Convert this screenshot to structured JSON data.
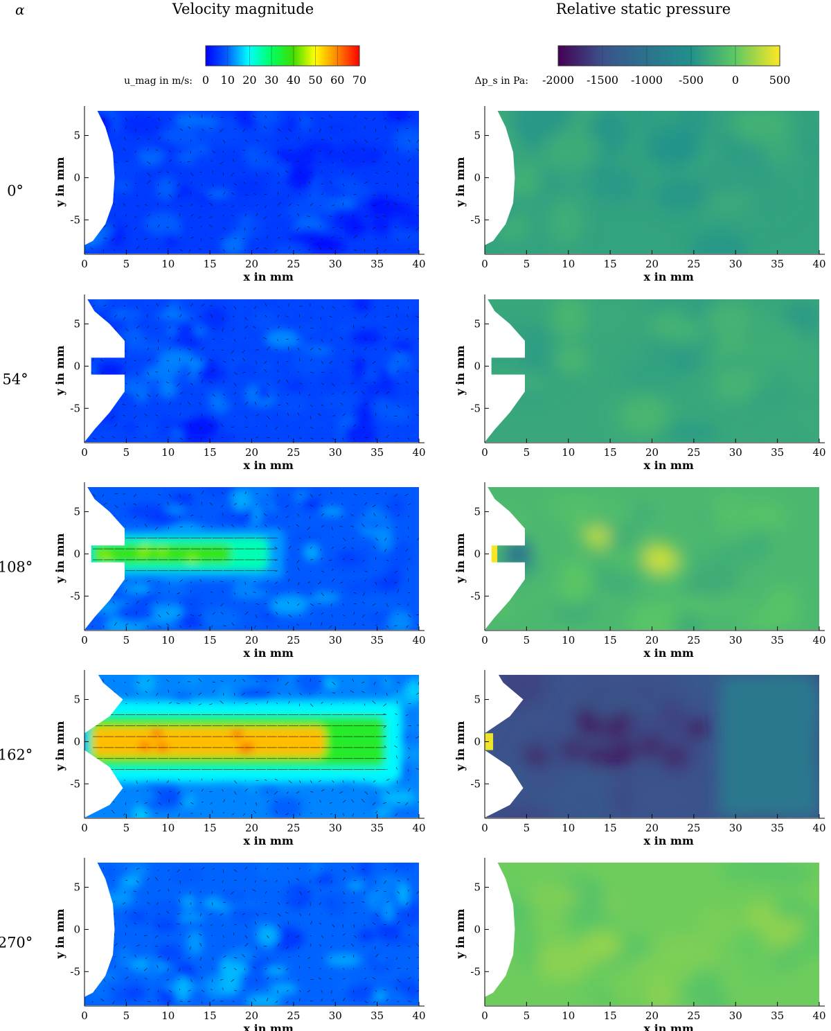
{
  "figure": {
    "alpha_symbol": "α",
    "left_column_title": "Velocity magnitude",
    "right_column_title": "Relative static pressure",
    "left_colorbar_label": "u_mag in m/s:",
    "right_colorbar_label": "Δp_s in Pa:"
  },
  "chart_data": [
    {
      "type": "heatmap",
      "panel": "velocity-magnitude",
      "title": "Velocity magnitude",
      "colorbar": {
        "label": "u_mag in m/s:",
        "min": 0,
        "max": 70,
        "ticks": [
          0,
          10,
          20,
          30,
          40,
          50,
          60,
          70
        ],
        "colormap": "jet"
      },
      "xlabel": "x in mm",
      "ylabel": "y in mm",
      "xlim": [
        0,
        40
      ],
      "ylim": [
        -9,
        8
      ],
      "xticks": [
        0,
        5,
        10,
        15,
        20,
        25,
        30,
        35,
        40
      ],
      "yticks": [
        -5,
        0,
        5
      ],
      "rows": [
        {
          "angle": "0°",
          "jet": null,
          "background": 6
        },
        {
          "angle": "54°",
          "jet": null,
          "background": 7
        },
        {
          "angle": "108°",
          "jet": {
            "length": 22,
            "peak": 38,
            "width": 1.4
          },
          "background": 9
        },
        {
          "angle": "162°",
          "jet": {
            "length": 36,
            "peak": 55,
            "width": 2.2
          },
          "background": 12
        },
        {
          "angle": "270°",
          "jet": null,
          "background": 10
        }
      ]
    },
    {
      "type": "heatmap",
      "panel": "relative-static-pressure",
      "title": "Relative static pressure",
      "colorbar": {
        "label": "Δp_s in Pa:",
        "min": -2000,
        "max": 500,
        "ticks": [
          -2000,
          -1500,
          -1000,
          -500,
          0,
          500
        ],
        "colormap": "viridis"
      },
      "xlabel": "x in mm",
      "ylabel": "y in mm",
      "xlim": [
        0,
        40
      ],
      "ylim": [
        -9,
        8
      ],
      "xticks": [
        0,
        5,
        10,
        15,
        20,
        25,
        30,
        35,
        40
      ],
      "yticks": [
        -5,
        0,
        5
      ],
      "rows": [
        {
          "angle": "0°",
          "base": -350
        },
        {
          "angle": "54°",
          "base": -300
        },
        {
          "angle": "108°",
          "base": -150
        },
        {
          "angle": "162°",
          "base": -1500
        },
        {
          "angle": "270°",
          "base": 50
        }
      ]
    }
  ]
}
